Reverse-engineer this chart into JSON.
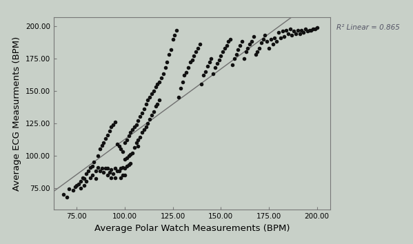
{
  "xlabel": "Average Polar Watch Measurements (BPM)",
  "ylabel": "Average ECG Measurments (BPM)",
  "r2_label": "R² Linear = 0.865",
  "background_color": "#c8d0c8",
  "scatter_color": "#111111",
  "line_color": "#707070",
  "xlim": [
    63,
    207
  ],
  "ylim": [
    58,
    207
  ],
  "xticks": [
    75.0,
    100.0,
    125.0,
    150.0,
    175.0,
    200.0
  ],
  "yticks": [
    75.0,
    100.0,
    125.0,
    150.0,
    175.0,
    200.0
  ],
  "marker_size": 16,
  "xlabel_fontsize": 9.5,
  "ylabel_fontsize": 9.5,
  "tick_fontsize": 7.5,
  "annotation_fontsize": 7.5,
  "seed": 12345,
  "x_data": [
    68,
    70,
    71,
    73,
    74,
    75,
    76,
    77,
    77,
    78,
    79,
    79,
    80,
    80,
    81,
    82,
    82,
    83,
    83,
    84,
    85,
    85,
    86,
    86,
    87,
    87,
    88,
    88,
    89,
    89,
    90,
    90,
    91,
    91,
    91,
    92,
    92,
    93,
    93,
    93,
    94,
    94,
    95,
    95,
    95,
    96,
    96,
    97,
    97,
    98,
    98,
    98,
    99,
    99,
    99,
    100,
    100,
    100,
    100,
    101,
    101,
    101,
    102,
    102,
    102,
    103,
    103,
    103,
    104,
    104,
    105,
    105,
    106,
    106,
    107,
    107,
    107,
    108,
    108,
    109,
    109,
    110,
    110,
    111,
    111,
    112,
    112,
    113,
    113,
    114,
    114,
    115,
    115,
    116,
    116,
    117,
    117,
    118,
    118,
    119,
    120,
    121,
    122,
    123,
    124,
    125,
    126,
    127,
    128,
    129,
    130,
    131,
    132,
    133,
    134,
    135,
    136,
    137,
    138,
    139,
    140,
    141,
    142,
    143,
    144,
    145,
    146,
    147,
    148,
    149,
    150,
    151,
    152,
    153,
    154,
    155,
    156,
    157,
    158,
    159,
    160,
    161,
    162,
    163,
    164,
    165,
    166,
    167,
    168,
    169,
    170,
    171,
    172,
    173,
    174,
    175,
    176,
    177,
    178,
    179,
    180,
    181,
    182,
    183,
    184,
    185,
    186,
    187,
    188,
    189,
    190,
    191,
    192,
    193,
    194,
    195,
    196,
    197,
    198,
    199,
    200
  ],
  "y_data": [
    70,
    68,
    74,
    73,
    76,
    77,
    78,
    80,
    75,
    83,
    82,
    77,
    86,
    80,
    88,
    91,
    83,
    92,
    85,
    95,
    88,
    82,
    100,
    91,
    105,
    88,
    108,
    90,
    110,
    87,
    113,
    90,
    116,
    90,
    85,
    119,
    87,
    122,
    89,
    83,
    124,
    86,
    126,
    90,
    83,
    109,
    88,
    107,
    88,
    105,
    90,
    83,
    103,
    91,
    85,
    110,
    97,
    90,
    85,
    112,
    98,
    92,
    115,
    100,
    93,
    118,
    101,
    94,
    120,
    102,
    122,
    106,
    124,
    110,
    127,
    112,
    107,
    130,
    114,
    133,
    118,
    136,
    120,
    140,
    122,
    143,
    125,
    145,
    128,
    148,
    131,
    150,
    134,
    153,
    138,
    155,
    140,
    157,
    143,
    160,
    163,
    168,
    172,
    178,
    182,
    190,
    193,
    197,
    145,
    152,
    157,
    162,
    164,
    168,
    172,
    174,
    177,
    180,
    183,
    186,
    155,
    162,
    165,
    169,
    172,
    175,
    163,
    168,
    171,
    174,
    177,
    180,
    183,
    185,
    188,
    190,
    170,
    175,
    178,
    182,
    185,
    188,
    175,
    180,
    183,
    186,
    188,
    192,
    178,
    180,
    183,
    187,
    190,
    193,
    188,
    183,
    190,
    186,
    191,
    188,
    195,
    191,
    196,
    192,
    197,
    194,
    198,
    193,
    196,
    194,
    197,
    194,
    197,
    195,
    198,
    196,
    197,
    197,
    198,
    198,
    199
  ]
}
